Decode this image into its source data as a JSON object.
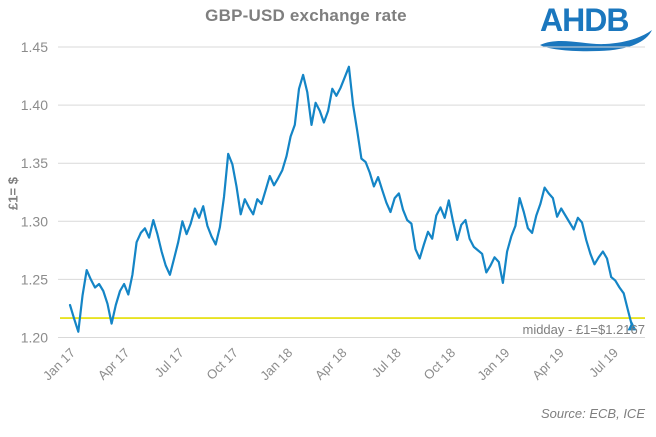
{
  "header": {
    "title": "GBP-USD exchange rate",
    "logo_text": "AHDB"
  },
  "annotation": {
    "midday_label": "midday - £1=$1.2167"
  },
  "footer": {
    "source": "Source: ECB, ICE"
  },
  "colors": {
    "series_blue": "#1485c6",
    "reference_yellow": "#e4de00",
    "grid_gray": "#d9d9d9",
    "tick_gray": "#8c8c8c",
    "title_gray": "#7f7f7f",
    "logo_blue": "#1b77be"
  },
  "chart_data": {
    "type": "line",
    "title": "GBP-USD exchange rate",
    "xlabel": "",
    "ylabel": "£1= $",
    "ylim": [
      1.2,
      1.45
    ],
    "yticks": [
      1.45,
      1.4,
      1.35,
      1.3,
      1.25,
      1.2
    ],
    "grid": true,
    "legend_position": "none",
    "x_axis": {
      "start": "Jan 2017",
      "end": "Aug 2019",
      "tick_interval": "3 months",
      "label_rotation": -45
    },
    "x_ticks": [
      {
        "m": 0,
        "label": "Jan 17"
      },
      {
        "m": 3,
        "label": "Apr 17"
      },
      {
        "m": 6,
        "label": "Jul 17"
      },
      {
        "m": 9,
        "label": "Oct 17"
      },
      {
        "m": 12,
        "label": "Jan 18"
      },
      {
        "m": 15,
        "label": "Apr 18"
      },
      {
        "m": 18,
        "label": "Jul 18"
      },
      {
        "m": 21,
        "label": "Oct 18"
      },
      {
        "m": 24,
        "label": "Jan 19"
      },
      {
        "m": 27,
        "label": "Apr 19"
      },
      {
        "m": 30,
        "label": "Jul 19"
      }
    ],
    "months_total": 31.05,
    "series": [
      {
        "name": "GBP-USD exchange rate (weekly, read from chart)",
        "color": "#1485c6",
        "values": [
          1.228,
          1.216,
          1.205,
          1.236,
          1.258,
          1.25,
          1.243,
          1.246,
          1.24,
          1.229,
          1.212,
          1.228,
          1.24,
          1.246,
          1.237,
          1.254,
          1.282,
          1.29,
          1.294,
          1.286,
          1.301,
          1.289,
          1.274,
          1.262,
          1.254,
          1.268,
          1.282,
          1.3,
          1.289,
          1.298,
          1.311,
          1.303,
          1.313,
          1.296,
          1.287,
          1.28,
          1.295,
          1.321,
          1.358,
          1.349,
          1.33,
          1.306,
          1.319,
          1.312,
          1.306,
          1.319,
          1.315,
          1.327,
          1.339,
          1.331,
          1.337,
          1.344,
          1.356,
          1.373,
          1.383,
          1.414,
          1.426,
          1.411,
          1.383,
          1.402,
          1.395,
          1.385,
          1.395,
          1.414,
          1.408,
          1.415,
          1.424,
          1.433,
          1.4,
          1.378,
          1.354,
          1.351,
          1.342,
          1.33,
          1.338,
          1.327,
          1.316,
          1.308,
          1.32,
          1.324,
          1.31,
          1.301,
          1.298,
          1.276,
          1.268,
          1.28,
          1.291,
          1.285,
          1.305,
          1.312,
          1.303,
          1.318,
          1.3,
          1.284,
          1.297,
          1.301,
          1.285,
          1.278,
          1.275,
          1.272,
          1.256,
          1.262,
          1.269,
          1.265,
          1.247,
          1.274,
          1.287,
          1.296,
          1.32,
          1.308,
          1.294,
          1.29,
          1.305,
          1.315,
          1.329,
          1.324,
          1.32,
          1.304,
          1.311,
          1.305,
          1.299,
          1.293,
          1.303,
          1.299,
          1.284,
          1.272,
          1.263,
          1.269,
          1.274,
          1.268,
          1.252,
          1.249,
          1.243,
          1.238,
          1.224,
          1.21
        ]
      }
    ],
    "reference_line": {
      "value": 1.2167,
      "label": "midday - £1=$1.2167",
      "color": "#e4de00"
    },
    "end_marker": {
      "shape": "triangle-up",
      "color": "#1485c6",
      "at_value": 1.21
    },
    "annotations": [
      "midday - £1=$1.2167"
    ]
  }
}
